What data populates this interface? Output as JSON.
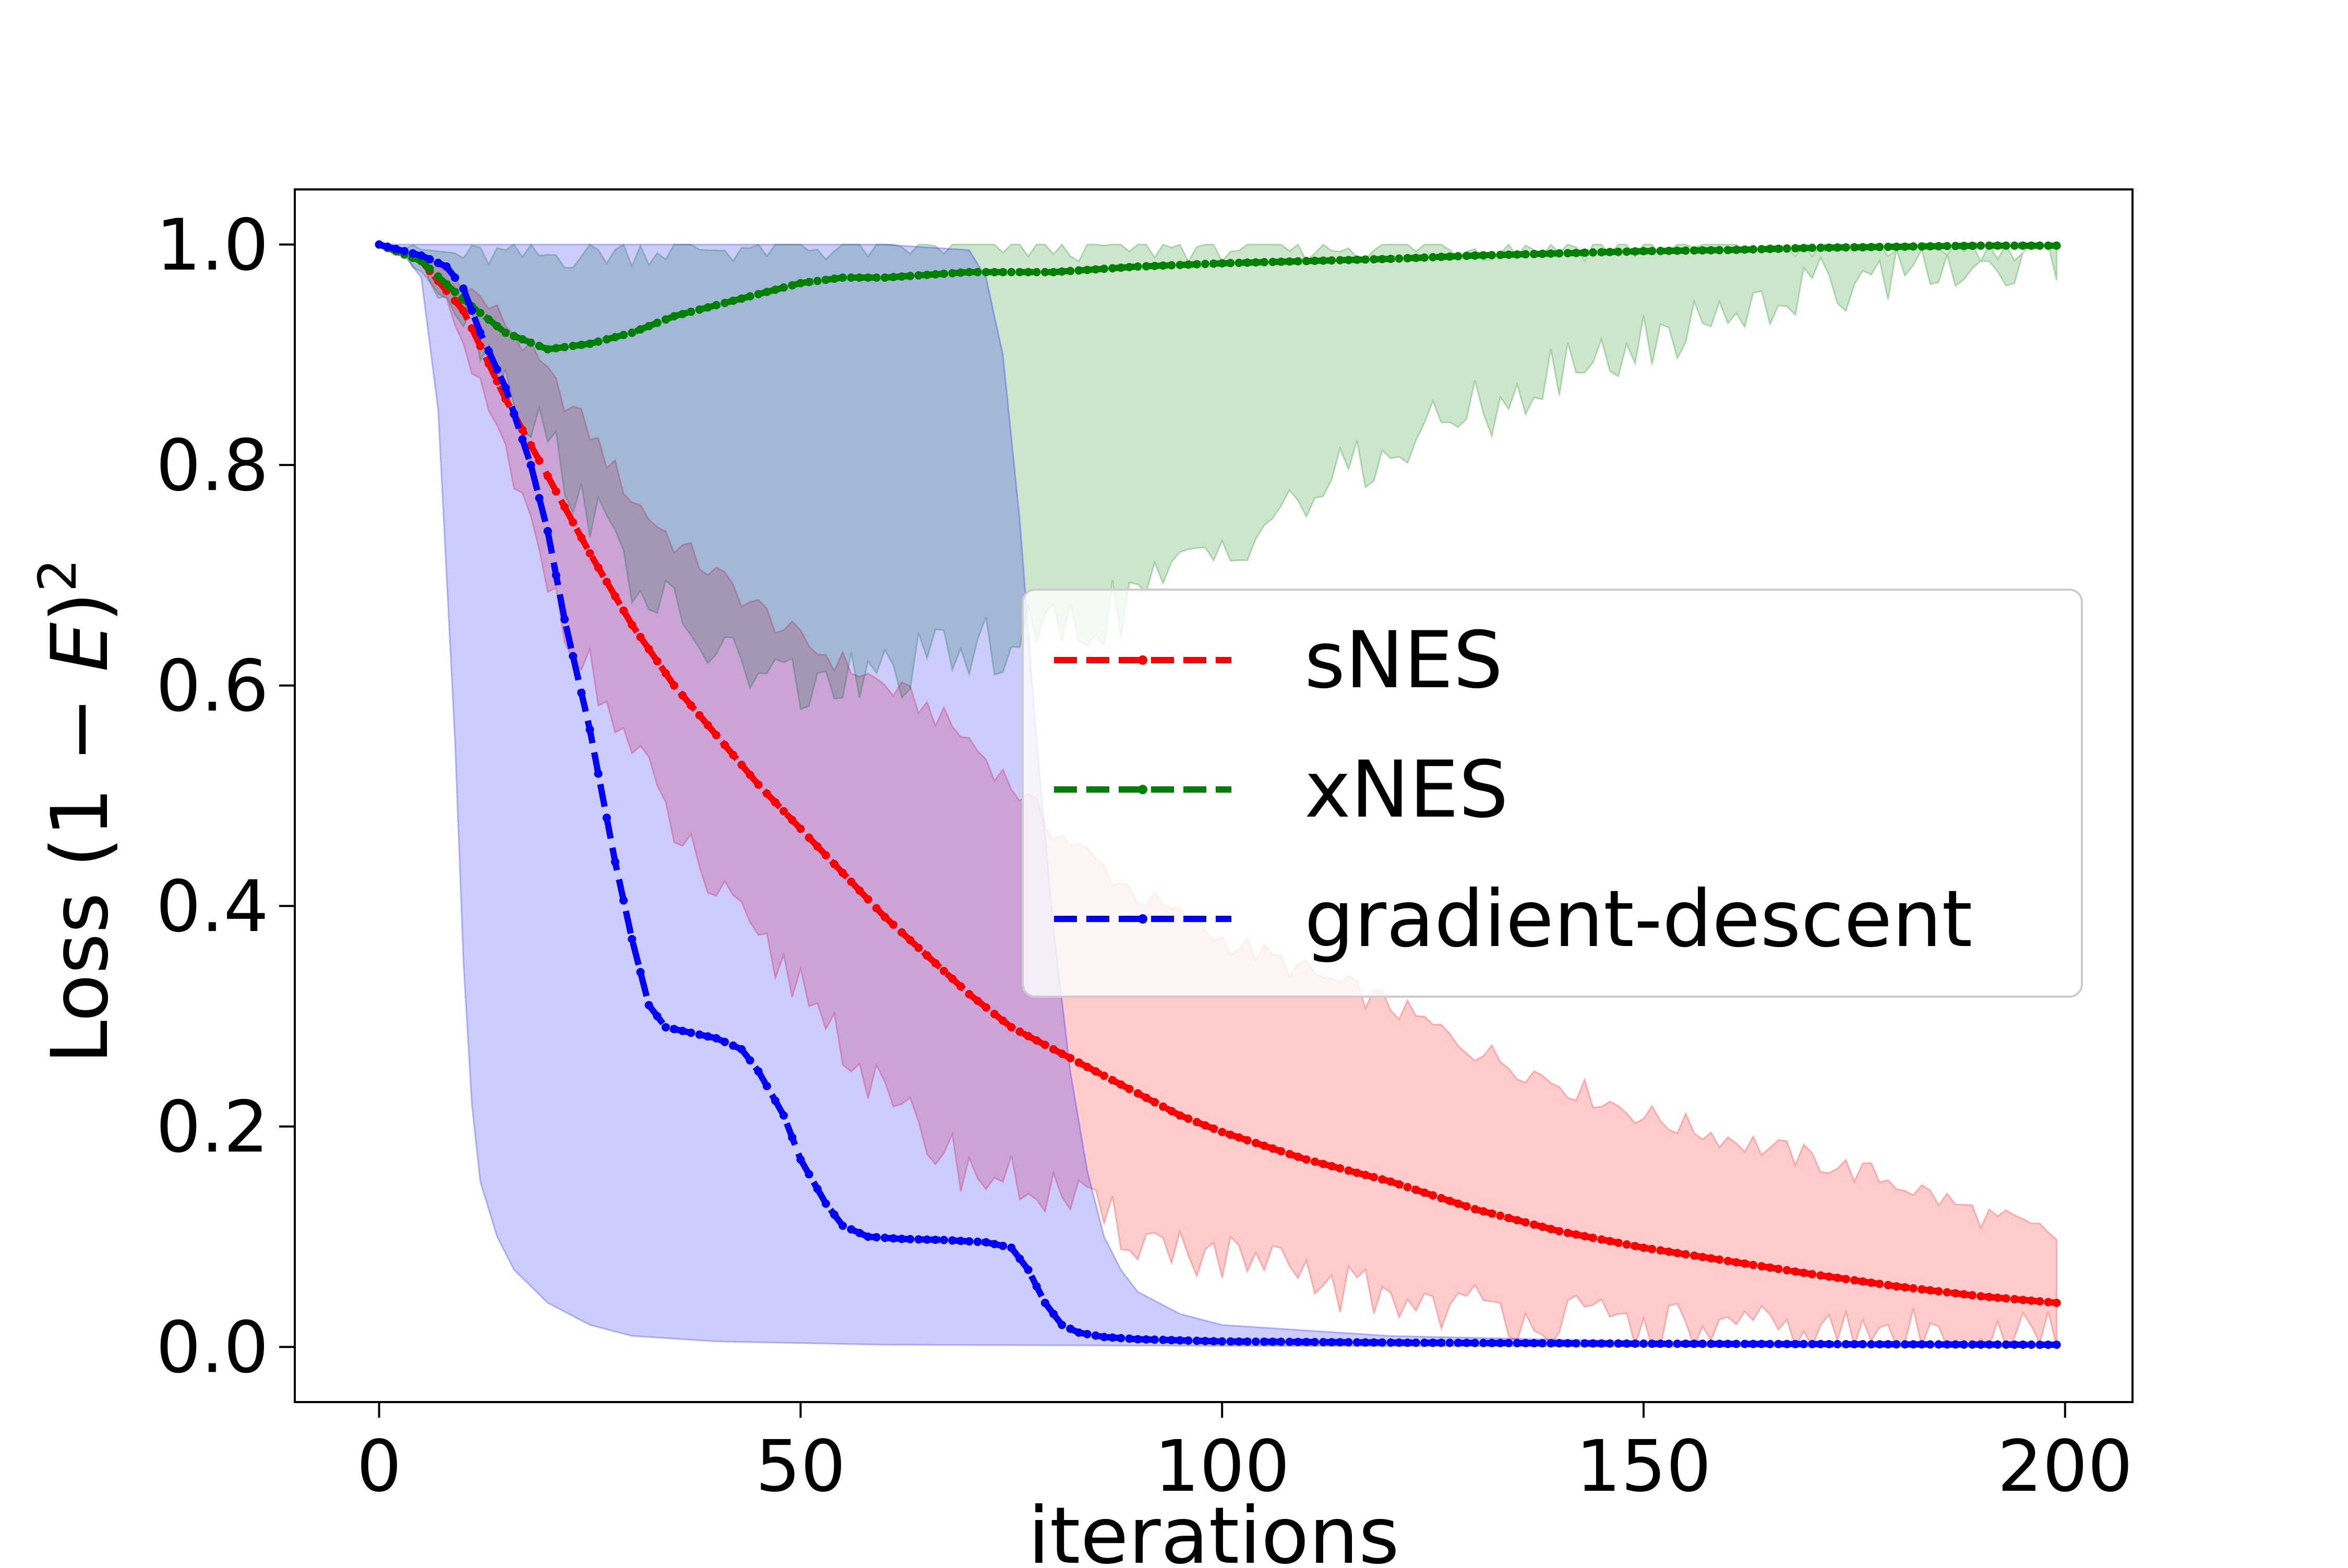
{
  "chart_data": {
    "type": "line",
    "title": "",
    "xlabel": "iterations",
    "ylabel_prefix": "Loss (1 − ",
    "ylabel_var": "E",
    "ylabel_suffix": ")",
    "ylabel_power": "2",
    "xlim": [
      -10,
      208
    ],
    "ylim": [
      -0.05,
      1.05
    ],
    "x_ticks": [
      0,
      50,
      100,
      150,
      200
    ],
    "x_tick_labels": [
      "0",
      "50",
      "100",
      "150",
      "200"
    ],
    "y_ticks": [
      0.0,
      0.2,
      0.4,
      0.6,
      0.8,
      1.0
    ],
    "y_tick_labels": [
      "0.0",
      "0.2",
      "0.4",
      "0.6",
      "0.8",
      "1.0"
    ],
    "grid": false,
    "legend_position": "center-right",
    "x_range": [
      0,
      199
    ],
    "series": [
      {
        "name": "sNES",
        "color": "#ff0000",
        "band_color": "#ff0000",
        "mean": [
          [
            0,
            1.0
          ],
          [
            5,
            0.985
          ],
          [
            10,
            0.94
          ],
          [
            15,
            0.86
          ],
          [
            20,
            0.79
          ],
          [
            25,
            0.72
          ],
          [
            30,
            0.655
          ],
          [
            35,
            0.6
          ],
          [
            40,
            0.555
          ],
          [
            45,
            0.51
          ],
          [
            50,
            0.47
          ],
          [
            55,
            0.43
          ],
          [
            60,
            0.39
          ],
          [
            65,
            0.355
          ],
          [
            70,
            0.32
          ],
          [
            75,
            0.29
          ],
          [
            80,
            0.27
          ],
          [
            85,
            0.25
          ],
          [
            90,
            0.23
          ],
          [
            95,
            0.21
          ],
          [
            100,
            0.195
          ],
          [
            110,
            0.17
          ],
          [
            120,
            0.15
          ],
          [
            130,
            0.125
          ],
          [
            140,
            0.105
          ],
          [
            150,
            0.09
          ],
          [
            160,
            0.078
          ],
          [
            170,
            0.066
          ],
          [
            180,
            0.055
          ],
          [
            190,
            0.046
          ],
          [
            199,
            0.04
          ]
        ],
        "upper": [
          [
            0,
            1.0
          ],
          [
            5,
            0.99
          ],
          [
            10,
            0.965
          ],
          [
            15,
            0.93
          ],
          [
            20,
            0.88
          ],
          [
            25,
            0.83
          ],
          [
            30,
            0.77
          ],
          [
            35,
            0.73
          ],
          [
            40,
            0.7
          ],
          [
            45,
            0.67
          ],
          [
            50,
            0.64
          ],
          [
            55,
            0.62
          ],
          [
            60,
            0.6
          ],
          [
            65,
            0.58
          ],
          [
            70,
            0.55
          ],
          [
            75,
            0.51
          ],
          [
            80,
            0.47
          ],
          [
            85,
            0.44
          ],
          [
            90,
            0.41
          ],
          [
            95,
            0.39
          ],
          [
            100,
            0.37
          ],
          [
            110,
            0.34
          ],
          [
            120,
            0.31
          ],
          [
            130,
            0.27
          ],
          [
            140,
            0.24
          ],
          [
            150,
            0.21
          ],
          [
            160,
            0.19
          ],
          [
            170,
            0.17
          ],
          [
            180,
            0.15
          ],
          [
            190,
            0.12
          ],
          [
            199,
            0.1
          ]
        ],
        "lower": [
          [
            0,
            1.0
          ],
          [
            5,
            0.98
          ],
          [
            10,
            0.91
          ],
          [
            15,
            0.8
          ],
          [
            20,
            0.7
          ],
          [
            25,
            0.61
          ],
          [
            30,
            0.54
          ],
          [
            35,
            0.47
          ],
          [
            40,
            0.41
          ],
          [
            45,
            0.36
          ],
          [
            50,
            0.33
          ],
          [
            55,
            0.28
          ],
          [
            60,
            0.22
          ],
          [
            65,
            0.19
          ],
          [
            70,
            0.16
          ],
          [
            75,
            0.15
          ],
          [
            80,
            0.14
          ],
          [
            85,
            0.12
          ],
          [
            90,
            0.1
          ],
          [
            95,
            0.09
          ],
          [
            100,
            0.08
          ],
          [
            110,
            0.06
          ],
          [
            120,
            0.045
          ],
          [
            130,
            0.035
          ],
          [
            140,
            0.025
          ],
          [
            150,
            0.018
          ],
          [
            160,
            0.014
          ],
          [
            170,
            0.012
          ],
          [
            180,
            0.011
          ],
          [
            190,
            0.01
          ],
          [
            199,
            0.01
          ]
        ]
      },
      {
        "name": "xNES",
        "color": "#008000",
        "band_color": "#008000",
        "mean": [
          [
            0,
            1.0
          ],
          [
            5,
            0.985
          ],
          [
            10,
            0.95
          ],
          [
            15,
            0.92
          ],
          [
            20,
            0.905
          ],
          [
            25,
            0.91
          ],
          [
            30,
            0.92
          ],
          [
            35,
            0.935
          ],
          [
            40,
            0.945
          ],
          [
            45,
            0.955
          ],
          [
            50,
            0.965
          ],
          [
            55,
            0.97
          ],
          [
            60,
            0.97
          ],
          [
            70,
            0.975
          ],
          [
            80,
            0.975
          ],
          [
            90,
            0.98
          ],
          [
            100,
            0.983
          ],
          [
            110,
            0.985
          ],
          [
            120,
            0.987
          ],
          [
            130,
            0.99
          ],
          [
            140,
            0.992
          ],
          [
            150,
            0.994
          ],
          [
            160,
            0.995
          ],
          [
            170,
            0.997
          ],
          [
            180,
            0.998
          ],
          [
            190,
            0.999
          ],
          [
            199,
            0.999
          ]
        ],
        "upper": [
          [
            0,
            1.0
          ],
          [
            10,
            0.99
          ],
          [
            20,
            0.99
          ],
          [
            30,
            0.995
          ],
          [
            40,
            0.997
          ],
          [
            60,
            0.998
          ],
          [
            80,
            0.999
          ],
          [
            100,
            0.999
          ],
          [
            150,
            0.999
          ],
          [
            199,
            1.0
          ]
        ],
        "lower": [
          [
            0,
            1.0
          ],
          [
            5,
            0.98
          ],
          [
            10,
            0.94
          ],
          [
            15,
            0.88
          ],
          [
            20,
            0.82
          ],
          [
            25,
            0.76
          ],
          [
            30,
            0.7
          ],
          [
            35,
            0.66
          ],
          [
            40,
            0.63
          ],
          [
            45,
            0.61
          ],
          [
            50,
            0.6
          ],
          [
            55,
            0.6
          ],
          [
            60,
            0.61
          ],
          [
            65,
            0.62
          ],
          [
            70,
            0.63
          ],
          [
            75,
            0.64
          ],
          [
            80,
            0.65
          ],
          [
            85,
            0.66
          ],
          [
            90,
            0.68
          ],
          [
            95,
            0.7
          ],
          [
            100,
            0.73
          ],
          [
            110,
            0.77
          ],
          [
            120,
            0.81
          ],
          [
            130,
            0.85
          ],
          [
            140,
            0.88
          ],
          [
            150,
            0.91
          ],
          [
            160,
            0.94
          ],
          [
            170,
            0.96
          ],
          [
            180,
            0.98
          ],
          [
            190,
            0.99
          ],
          [
            199,
            0.995
          ]
        ]
      },
      {
        "name": "gradient-descent",
        "color": "#0000ff",
        "band_color": "#0000ff",
        "mean": [
          [
            0,
            1.0
          ],
          [
            5,
            0.99
          ],
          [
            8,
            0.98
          ],
          [
            10,
            0.96
          ],
          [
            12,
            0.92
          ],
          [
            15,
            0.87
          ],
          [
            18,
            0.8
          ],
          [
            20,
            0.74
          ],
          [
            22,
            0.66
          ],
          [
            25,
            0.56
          ],
          [
            28,
            0.44
          ],
          [
            30,
            0.37
          ],
          [
            32,
            0.31
          ],
          [
            34,
            0.29
          ],
          [
            37,
            0.285
          ],
          [
            40,
            0.28
          ],
          [
            43,
            0.27
          ],
          [
            45,
            0.25
          ],
          [
            48,
            0.21
          ],
          [
            50,
            0.17
          ],
          [
            53,
            0.13
          ],
          [
            55,
            0.11
          ],
          [
            58,
            0.1
          ],
          [
            62,
            0.098
          ],
          [
            67,
            0.097
          ],
          [
            72,
            0.095
          ],
          [
            75,
            0.09
          ],
          [
            77,
            0.07
          ],
          [
            79,
            0.04
          ],
          [
            81,
            0.02
          ],
          [
            83,
            0.013
          ],
          [
            86,
            0.009
          ],
          [
            90,
            0.007
          ],
          [
            100,
            0.005
          ],
          [
            120,
            0.004
          ],
          [
            150,
            0.003
          ],
          [
            199,
            0.002
          ]
        ],
        "upper": [
          [
            0,
            1.0
          ],
          [
            10,
            1.0
          ],
          [
            20,
            1.0
          ],
          [
            40,
            1.0
          ],
          [
            60,
            1.0
          ],
          [
            70,
            0.995
          ],
          [
            72,
            0.97
          ],
          [
            74,
            0.9
          ],
          [
            76,
            0.75
          ],
          [
            78,
            0.55
          ],
          [
            80,
            0.38
          ],
          [
            82,
            0.25
          ],
          [
            84,
            0.16
          ],
          [
            86,
            0.1
          ],
          [
            88,
            0.07
          ],
          [
            90,
            0.05
          ],
          [
            95,
            0.03
          ],
          [
            100,
            0.02
          ],
          [
            120,
            0.01
          ],
          [
            150,
            0.005
          ],
          [
            199,
            0.003
          ]
        ],
        "lower": [
          [
            0,
            1.0
          ],
          [
            3,
            0.99
          ],
          [
            5,
            0.97
          ],
          [
            7,
            0.85
          ],
          [
            9,
            0.55
          ],
          [
            10,
            0.35
          ],
          [
            11,
            0.22
          ],
          [
            12,
            0.15
          ],
          [
            14,
            0.1
          ],
          [
            16,
            0.07
          ],
          [
            20,
            0.04
          ],
          [
            25,
            0.02
          ],
          [
            30,
            0.01
          ],
          [
            40,
            0.005
          ],
          [
            60,
            0.002
          ],
          [
            100,
            0.001
          ],
          [
            199,
            0.0
          ]
        ]
      }
    ]
  }
}
